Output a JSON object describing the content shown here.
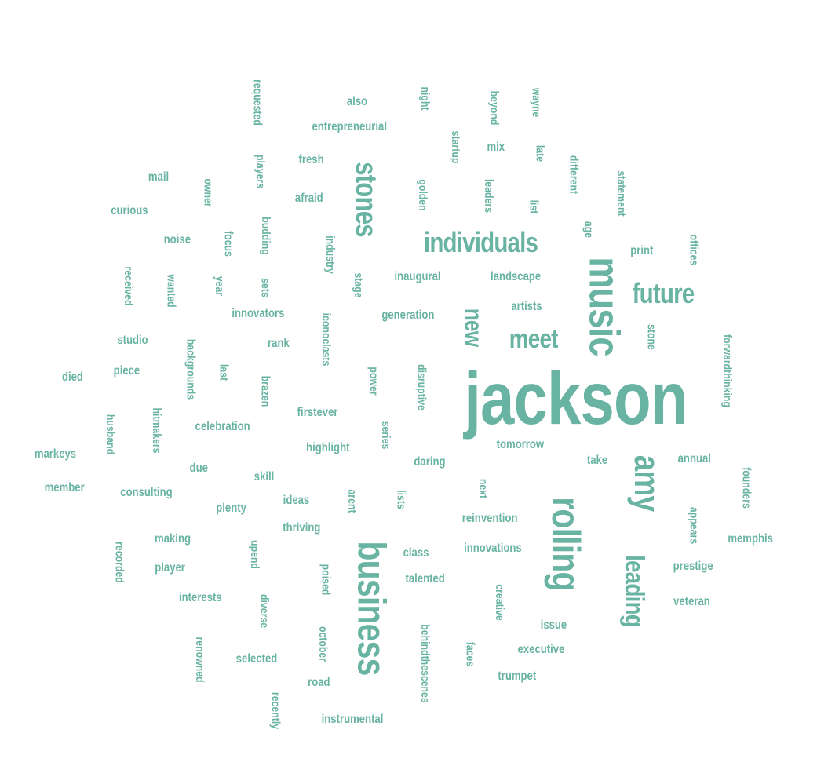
{
  "color": "#69b3a2",
  "words": [
    {
      "text": "jackson",
      "size": 95,
      "rotate": 0
    },
    {
      "text": "music",
      "size": 55,
      "rotate": 90
    },
    {
      "text": "business",
      "size": 50,
      "rotate": 90
    },
    {
      "text": "rolling",
      "size": 50,
      "rotate": 90
    },
    {
      "text": "amy",
      "size": 45,
      "rotate": 90
    },
    {
      "text": "stones",
      "size": 38,
      "rotate": 90
    },
    {
      "text": "individuals",
      "size": 36,
      "rotate": 0
    },
    {
      "text": "future",
      "size": 36,
      "rotate": 0
    },
    {
      "text": "meet",
      "size": 34,
      "rotate": 0
    },
    {
      "text": "leading",
      "size": 34,
      "rotate": 90
    },
    {
      "text": "new",
      "size": 32,
      "rotate": 90
    },
    {
      "text": "requested",
      "size": 15,
      "rotate": 90
    },
    {
      "text": "night",
      "size": 15,
      "rotate": 90
    },
    {
      "text": "beyond",
      "size": 15,
      "rotate": 90
    },
    {
      "text": "wayne",
      "size": 15,
      "rotate": 90
    },
    {
      "text": "also",
      "size": 16,
      "rotate": 0
    },
    {
      "text": "entrepreneurial",
      "size": 16,
      "rotate": 0
    },
    {
      "text": "startup",
      "size": 15,
      "rotate": 90
    },
    {
      "text": "mix",
      "size": 16,
      "rotate": 0
    },
    {
      "text": "late",
      "size": 15,
      "rotate": 90
    },
    {
      "text": "different",
      "size": 15,
      "rotate": 90
    },
    {
      "text": "players",
      "size": 15,
      "rotate": 90
    },
    {
      "text": "fresh",
      "size": 16,
      "rotate": 0
    },
    {
      "text": "statement",
      "size": 15,
      "rotate": 90
    },
    {
      "text": "mail",
      "size": 16,
      "rotate": 0
    },
    {
      "text": "owner",
      "size": 15,
      "rotate": 90
    },
    {
      "text": "golden",
      "size": 15,
      "rotate": 90
    },
    {
      "text": "leaders",
      "size": 15,
      "rotate": 90
    },
    {
      "text": "list",
      "size": 15,
      "rotate": 90
    },
    {
      "text": "afraid",
      "size": 16,
      "rotate": 0
    },
    {
      "text": "curious",
      "size": 16,
      "rotate": 0
    },
    {
      "text": "budding",
      "size": 15,
      "rotate": 90
    },
    {
      "text": "age",
      "size": 15,
      "rotate": 90
    },
    {
      "text": "focus",
      "size": 15,
      "rotate": 90
    },
    {
      "text": "industry",
      "size": 15,
      "rotate": 90
    },
    {
      "text": "offices",
      "size": 15,
      "rotate": 90
    },
    {
      "text": "noise",
      "size": 16,
      "rotate": 0
    },
    {
      "text": "print",
      "size": 16,
      "rotate": 0
    },
    {
      "text": "received",
      "size": 15,
      "rotate": 90
    },
    {
      "text": "wanted",
      "size": 15,
      "rotate": 90
    },
    {
      "text": "year",
      "size": 15,
      "rotate": 90
    },
    {
      "text": "sets",
      "size": 15,
      "rotate": 90
    },
    {
      "text": "stage",
      "size": 15,
      "rotate": 90
    },
    {
      "text": "inaugural",
      "size": 16,
      "rotate": 0
    },
    {
      "text": "landscape",
      "size": 16,
      "rotate": 0
    },
    {
      "text": "artists",
      "size": 16,
      "rotate": 0
    },
    {
      "text": "innovators",
      "size": 16,
      "rotate": 0
    },
    {
      "text": "iconoclasts",
      "size": 15,
      "rotate": 90
    },
    {
      "text": "generation",
      "size": 16,
      "rotate": 0
    },
    {
      "text": "stone",
      "size": 15,
      "rotate": 90
    },
    {
      "text": "forwardthinking",
      "size": 15,
      "rotate": 90
    },
    {
      "text": "studio",
      "size": 16,
      "rotate": 0
    },
    {
      "text": "backgrounds",
      "size": 15,
      "rotate": 90
    },
    {
      "text": "rank",
      "size": 16,
      "rotate": 0
    },
    {
      "text": "last",
      "size": 15,
      "rotate": 90
    },
    {
      "text": "power",
      "size": 15,
      "rotate": 90
    },
    {
      "text": "disruptive",
      "size": 15,
      "rotate": 90
    },
    {
      "text": "died",
      "size": 16,
      "rotate": 0
    },
    {
      "text": "piece",
      "size": 16,
      "rotate": 0
    },
    {
      "text": "brazen",
      "size": 15,
      "rotate": 90
    },
    {
      "text": "hitmakers",
      "size": 15,
      "rotate": 90
    },
    {
      "text": "husband",
      "size": 15,
      "rotate": 90
    },
    {
      "text": "firstever",
      "size": 16,
      "rotate": 0
    },
    {
      "text": "series",
      "size": 15,
      "rotate": 90
    },
    {
      "text": "celebration",
      "size": 16,
      "rotate": 0
    },
    {
      "text": "highlight",
      "size": 16,
      "rotate": 0
    },
    {
      "text": "tomorrow",
      "size": 16,
      "rotate": 0
    },
    {
      "text": "markeys",
      "size": 16,
      "rotate": 0
    },
    {
      "text": "daring",
      "size": 16,
      "rotate": 0
    },
    {
      "text": "take",
      "size": 16,
      "rotate": 0
    },
    {
      "text": "annual",
      "size": 16,
      "rotate": 0
    },
    {
      "text": "founders",
      "size": 15,
      "rotate": 90
    },
    {
      "text": "due",
      "size": 16,
      "rotate": 0
    },
    {
      "text": "skill",
      "size": 16,
      "rotate": 0
    },
    {
      "text": "member",
      "size": 16,
      "rotate": 0
    },
    {
      "text": "consulting",
      "size": 16,
      "rotate": 0
    },
    {
      "text": "arent",
      "size": 15,
      "rotate": 90
    },
    {
      "text": "lists",
      "size": 15,
      "rotate": 90
    },
    {
      "text": "next",
      "size": 15,
      "rotate": 90
    },
    {
      "text": "ideas",
      "size": 16,
      "rotate": 0
    },
    {
      "text": "plenty",
      "size": 16,
      "rotate": 0
    },
    {
      "text": "appears",
      "size": 15,
      "rotate": 90
    },
    {
      "text": "reinvention",
      "size": 16,
      "rotate": 0
    },
    {
      "text": "thriving",
      "size": 16,
      "rotate": 0
    },
    {
      "text": "memphis",
      "size": 16,
      "rotate": 0
    },
    {
      "text": "recorded",
      "size": 15,
      "rotate": 90
    },
    {
      "text": "making",
      "size": 16,
      "rotate": 0
    },
    {
      "text": "upend",
      "size": 15,
      "rotate": 90
    },
    {
      "text": "innovations",
      "size": 16,
      "rotate": 0
    },
    {
      "text": "class",
      "size": 16,
      "rotate": 0
    },
    {
      "text": "player",
      "size": 16,
      "rotate": 0
    },
    {
      "text": "poised",
      "size": 15,
      "rotate": 90
    },
    {
      "text": "prestige",
      "size": 16,
      "rotate": 0
    },
    {
      "text": "talented",
      "size": 16,
      "rotate": 0
    },
    {
      "text": "creative",
      "size": 15,
      "rotate": 90
    },
    {
      "text": "interests",
      "size": 16,
      "rotate": 0
    },
    {
      "text": "diverse",
      "size": 15,
      "rotate": 90
    },
    {
      "text": "veteran",
      "size": 16,
      "rotate": 0
    },
    {
      "text": "behindthescenes",
      "size": 15,
      "rotate": 90
    },
    {
      "text": "issue",
      "size": 16,
      "rotate": 0
    },
    {
      "text": "october",
      "size": 15,
      "rotate": 90
    },
    {
      "text": "renowned",
      "size": 15,
      "rotate": 90
    },
    {
      "text": "executive",
      "size": 16,
      "rotate": 0
    },
    {
      "text": "faces",
      "size": 15,
      "rotate": 90
    },
    {
      "text": "selected",
      "size": 16,
      "rotate": 0
    },
    {
      "text": "trumpet",
      "size": 16,
      "rotate": 0
    },
    {
      "text": "road",
      "size": 16,
      "rotate": 0
    },
    {
      "text": "recently",
      "size": 15,
      "rotate": 90
    },
    {
      "text": "instrumental",
      "size": 16,
      "rotate": 0
    }
  ]
}
